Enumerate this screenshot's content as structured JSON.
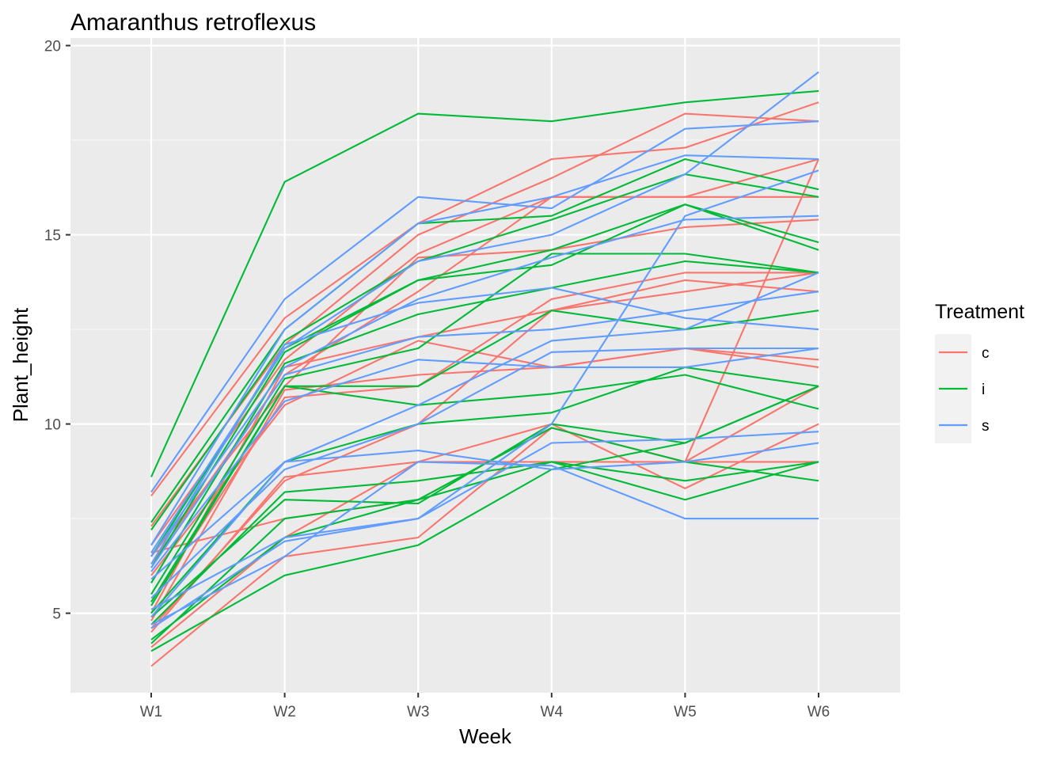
{
  "chart_data": {
    "type": "line",
    "title": "Amaranthus retroflexus",
    "xlabel": "Week",
    "ylabel": "Plant_height",
    "categories": [
      "W1",
      "W2",
      "W3",
      "W4",
      "W5",
      "W6"
    ],
    "ylim": [
      2.9,
      20.2
    ],
    "yticks": [
      5,
      10,
      15,
      20
    ],
    "grid": true,
    "legend": {
      "title": "Treatment",
      "placement": "right",
      "entries": [
        {
          "label": "c",
          "color": "#F8766D"
        },
        {
          "label": "i",
          "color": "#00BA38"
        },
        {
          "label": "s",
          "color": "#619CFF"
        }
      ]
    },
    "series": [
      {
        "group": "c",
        "values": [
          8.1,
          12.8,
          15.3,
          17.0,
          17.3,
          18.5
        ]
      },
      {
        "group": "c",
        "values": [
          7.3,
          12.1,
          15.0,
          16.5,
          18.2,
          18.0
        ]
      },
      {
        "group": "c",
        "values": [
          6.8,
          11.7,
          14.5,
          16.0,
          16.0,
          16.0
        ]
      },
      {
        "group": "c",
        "values": [
          6.5,
          11.0,
          14.4,
          14.6,
          15.2,
          15.4
        ]
      },
      {
        "group": "c",
        "values": [
          6.3,
          11.3,
          13.5,
          16.0,
          16.0,
          17.0
        ]
      },
      {
        "group": "c",
        "values": [
          6.0,
          10.5,
          12.2,
          11.5,
          12.0,
          11.7
        ]
      },
      {
        "group": "c",
        "values": [
          5.3,
          10.7,
          11.0,
          13.3,
          14.0,
          14.0
        ]
      },
      {
        "group": "c",
        "values": [
          5.0,
          11.5,
          12.3,
          13.0,
          13.8,
          13.5
        ]
      },
      {
        "group": "c",
        "values": [
          4.8,
          10.9,
          11.3,
          11.5,
          12.0,
          11.5
        ]
      },
      {
        "group": "c",
        "values": [
          4.6,
          8.5,
          10.0,
          13.0,
          13.5,
          14.0
        ]
      },
      {
        "group": "c",
        "values": [
          4.5,
          8.6,
          9.0,
          9.0,
          9.0,
          17.0
        ]
      },
      {
        "group": "c",
        "values": [
          4.1,
          7.0,
          9.0,
          10.0,
          8.3,
          10.0
        ]
      },
      {
        "group": "c",
        "values": [
          3.6,
          6.5,
          7.0,
          9.9,
          9.0,
          11.0
        ]
      },
      {
        "group": "c",
        "values": [
          6.6,
          7.5,
          8.0,
          9.9,
          9.0,
          9.0
        ]
      },
      {
        "group": "i",
        "values": [
          8.6,
          16.4,
          18.2,
          18.0,
          18.5,
          18.8
        ]
      },
      {
        "group": "i",
        "values": [
          7.4,
          12.5,
          15.3,
          15.5,
          17.0,
          16.2
        ]
      },
      {
        "group": "i",
        "values": [
          7.2,
          12.2,
          14.3,
          15.4,
          16.6,
          16.0
        ]
      },
      {
        "group": "i",
        "values": [
          6.5,
          12.0,
          13.8,
          14.6,
          15.8,
          14.6
        ]
      },
      {
        "group": "i",
        "values": [
          6.2,
          11.9,
          13.8,
          14.2,
          15.8,
          14.8
        ]
      },
      {
        "group": "i",
        "values": [
          5.8,
          11.6,
          12.9,
          13.6,
          14.3,
          14.0
        ]
      },
      {
        "group": "i",
        "values": [
          5.5,
          11.2,
          12.0,
          14.5,
          14.5,
          14.0
        ]
      },
      {
        "group": "i",
        "values": [
          5.3,
          11.0,
          10.5,
          10.8,
          11.3,
          10.4
        ]
      },
      {
        "group": "i",
        "values": [
          5.2,
          11.0,
          11.0,
          13.0,
          12.5,
          13.0
        ]
      },
      {
        "group": "i",
        "values": [
          5.0,
          9.0,
          10.0,
          10.3,
          11.5,
          11.0
        ]
      },
      {
        "group": "i",
        "values": [
          4.9,
          8.0,
          7.9,
          10.0,
          9.5,
          11.0
        ]
      },
      {
        "group": "i",
        "values": [
          4.7,
          8.2,
          8.5,
          9.0,
          8.0,
          9.0
        ]
      },
      {
        "group": "i",
        "values": [
          4.3,
          7.0,
          8.0,
          9.9,
          9.0,
          8.5
        ]
      },
      {
        "group": "i",
        "values": [
          4.2,
          7.5,
          8.0,
          9.0,
          8.5,
          9.0
        ]
      },
      {
        "group": "i",
        "values": [
          4.0,
          6.0,
          6.8,
          8.8,
          9.5,
          11.0
        ]
      },
      {
        "group": "s",
        "values": [
          8.2,
          13.3,
          16.0,
          15.7,
          17.8,
          18.0
        ]
      },
      {
        "group": "s",
        "values": [
          6.8,
          12.5,
          15.3,
          16.0,
          17.1,
          17.0
        ]
      },
      {
        "group": "s",
        "values": [
          6.6,
          12.0,
          14.3,
          15.0,
          16.6,
          19.3
        ]
      },
      {
        "group": "s",
        "values": [
          6.5,
          11.5,
          13.3,
          14.4,
          15.4,
          15.5
        ]
      },
      {
        "group": "s",
        "values": [
          6.3,
          12.1,
          13.2,
          13.6,
          12.8,
          12.5
        ]
      },
      {
        "group": "s",
        "values": [
          6.2,
          11.3,
          12.3,
          12.5,
          13.0,
          13.5
        ]
      },
      {
        "group": "s",
        "values": [
          6.1,
          10.6,
          11.7,
          11.5,
          11.5,
          12.0
        ]
      },
      {
        "group": "s",
        "values": [
          5.9,
          9.0,
          10.5,
          12.2,
          12.5,
          14.0
        ]
      },
      {
        "group": "s",
        "values": [
          5.4,
          8.8,
          10.0,
          11.9,
          12.0,
          12.0
        ]
      },
      {
        "group": "s",
        "values": [
          5.1,
          7.0,
          7.5,
          9.5,
          9.6,
          9.8
        ]
      },
      {
        "group": "s",
        "values": [
          4.9,
          9.0,
          9.3,
          8.8,
          9.0,
          9.5
        ]
      },
      {
        "group": "s",
        "values": [
          4.7,
          6.5,
          9.0,
          8.9,
          7.5,
          7.5
        ]
      },
      {
        "group": "s",
        "values": [
          4.6,
          6.9,
          7.5,
          10.0,
          15.5,
          16.7
        ]
      }
    ]
  }
}
